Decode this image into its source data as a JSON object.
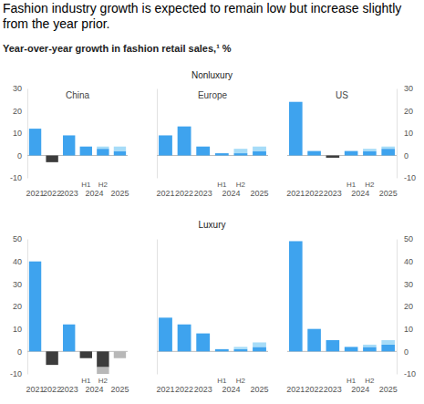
{
  "figure": {
    "title": "Fashion industry growth is expected to remain low but increase slightly from the year prior.",
    "subtitle": "Year-over-year growth in fashion retail sales,¹ %",
    "sections": [
      "Nonluxury",
      "Luxury"
    ]
  },
  "chart_data": [
    {
      "type": "bar",
      "title": "China",
      "categories": [
        "2021",
        "2022",
        "2023",
        "H1",
        "H2",
        "2025"
      ],
      "x_group": {
        "label": "2024",
        "from": "H1",
        "to": "H2"
      },
      "series": [
        {
          "values": [
            12,
            -3,
            9,
            4,
            3,
            2
          ],
          "colors": [
            "#3ea3ee",
            "#3c3c3c",
            "#3ea3ee",
            "#3ea3ee",
            "#3ea3ee",
            "#3ea3ee"
          ]
        },
        {
          "values": [
            null,
            null,
            null,
            null,
            1,
            2
          ],
          "colors": [
            null,
            null,
            null,
            null,
            "#a6dcf8",
            "#a6dcf8"
          ]
        }
      ],
      "stacked": true,
      "ylim": [
        -10,
        30
      ],
      "yticks": [
        -10,
        0,
        10,
        20,
        30
      ],
      "grid": false,
      "tick_labels": true
    },
    {
      "type": "bar",
      "title": "Europe",
      "categories": [
        "2021",
        "2022",
        "2023",
        "H1",
        "H2",
        "2025"
      ],
      "x_group": {
        "label": "2024",
        "from": "H1",
        "to": "H2"
      },
      "series": [
        {
          "values": [
            9,
            13,
            4,
            1,
            1,
            2
          ],
          "colors": [
            "#3ea3ee",
            "#3ea3ee",
            "#3ea3ee",
            "#3ea3ee",
            "#3ea3ee",
            "#3ea3ee"
          ]
        },
        {
          "values": [
            null,
            null,
            null,
            null,
            2,
            2
          ],
          "colors": [
            null,
            null,
            null,
            null,
            "#a6dcf8",
            "#a6dcf8"
          ]
        }
      ],
      "stacked": true,
      "ylim": [
        -10,
        30
      ],
      "yticks": [
        -10,
        0,
        10,
        20,
        30
      ],
      "grid": false,
      "tick_labels": "x"
    },
    {
      "type": "bar",
      "title": "US",
      "categories": [
        "2021",
        "2022",
        "2023",
        "H1",
        "H2",
        "2025"
      ],
      "x_group": {
        "label": "2024",
        "from": "H1",
        "to": "H2"
      },
      "series": [
        {
          "values": [
            24,
            2,
            -1,
            2,
            2,
            3
          ],
          "colors": [
            "#3ea3ee",
            "#3ea3ee",
            "#3c3c3c",
            "#3ea3ee",
            "#3ea3ee",
            "#3ea3ee"
          ]
        },
        {
          "values": [
            null,
            null,
            null,
            null,
            1,
            1
          ],
          "colors": [
            null,
            null,
            null,
            null,
            "#a6dcf8",
            "#a6dcf8"
          ]
        }
      ],
      "stacked": true,
      "ylim": [
        -10,
        30
      ],
      "yticks": [
        -10,
        0,
        10,
        20,
        30
      ],
      "grid": false,
      "tick_labels": true
    },
    {
      "type": "bar",
      "categories": [
        "2021",
        "2022",
        "2023",
        "H1",
        "H2",
        "2025"
      ],
      "x_group": {
        "label": "2024",
        "from": "H1",
        "to": "H2"
      },
      "series": [
        {
          "values": [
            40,
            -6,
            12,
            -3,
            -7,
            null
          ],
          "colors": [
            "#3ea3ee",
            "#3c3c3c",
            "#3ea3ee",
            "#3c3c3c",
            "#3c3c3c",
            null
          ]
        },
        {
          "values": [
            null,
            null,
            null,
            null,
            -3,
            -3
          ],
          "colors": [
            null,
            null,
            null,
            null,
            "#b8b8b8",
            "#b8b8b8"
          ]
        }
      ],
      "stacked": true,
      "ylim": [
        -10,
        50
      ],
      "yticks": [
        -10,
        0,
        10,
        20,
        30,
        40,
        50
      ],
      "grid": false,
      "tick_labels": true
    },
    {
      "type": "bar",
      "categories": [
        "2021",
        "2022",
        "2023",
        "H1",
        "H2",
        "2025"
      ],
      "x_group": {
        "label": "2024",
        "from": "H1",
        "to": "H2"
      },
      "series": [
        {
          "values": [
            15,
            12,
            8,
            1,
            1,
            2
          ],
          "colors": [
            "#3ea3ee",
            "#3ea3ee",
            "#3ea3ee",
            "#3ea3ee",
            "#3ea3ee",
            "#3ea3ee"
          ]
        },
        {
          "values": [
            null,
            null,
            null,
            null,
            1,
            2
          ],
          "colors": [
            null,
            null,
            null,
            null,
            "#a6dcf8",
            "#a6dcf8"
          ]
        }
      ],
      "stacked": true,
      "ylim": [
        -10,
        50
      ],
      "yticks": [
        -10,
        0,
        10,
        20,
        30,
        40,
        50
      ],
      "grid": false,
      "tick_labels": "x"
    },
    {
      "type": "bar",
      "categories": [
        "2021",
        "2022",
        "2023",
        "H1",
        "H2",
        "2025"
      ],
      "x_group": {
        "label": "2024",
        "from": "H1",
        "to": "H2"
      },
      "series": [
        {
          "values": [
            49,
            10,
            5,
            2,
            2,
            3
          ],
          "colors": [
            "#3ea3ee",
            "#3ea3ee",
            "#3ea3ee",
            "#3ea3ee",
            "#3ea3ee",
            "#3ea3ee"
          ]
        },
        {
          "values": [
            null,
            null,
            null,
            null,
            1,
            2
          ],
          "colors": [
            null,
            null,
            null,
            null,
            "#a6dcf8",
            "#a6dcf8"
          ]
        }
      ],
      "stacked": true,
      "ylim": [
        -10,
        50
      ],
      "yticks": [
        -10,
        0,
        10,
        20,
        30,
        40,
        50
      ],
      "grid": false,
      "tick_labels": true
    }
  ]
}
